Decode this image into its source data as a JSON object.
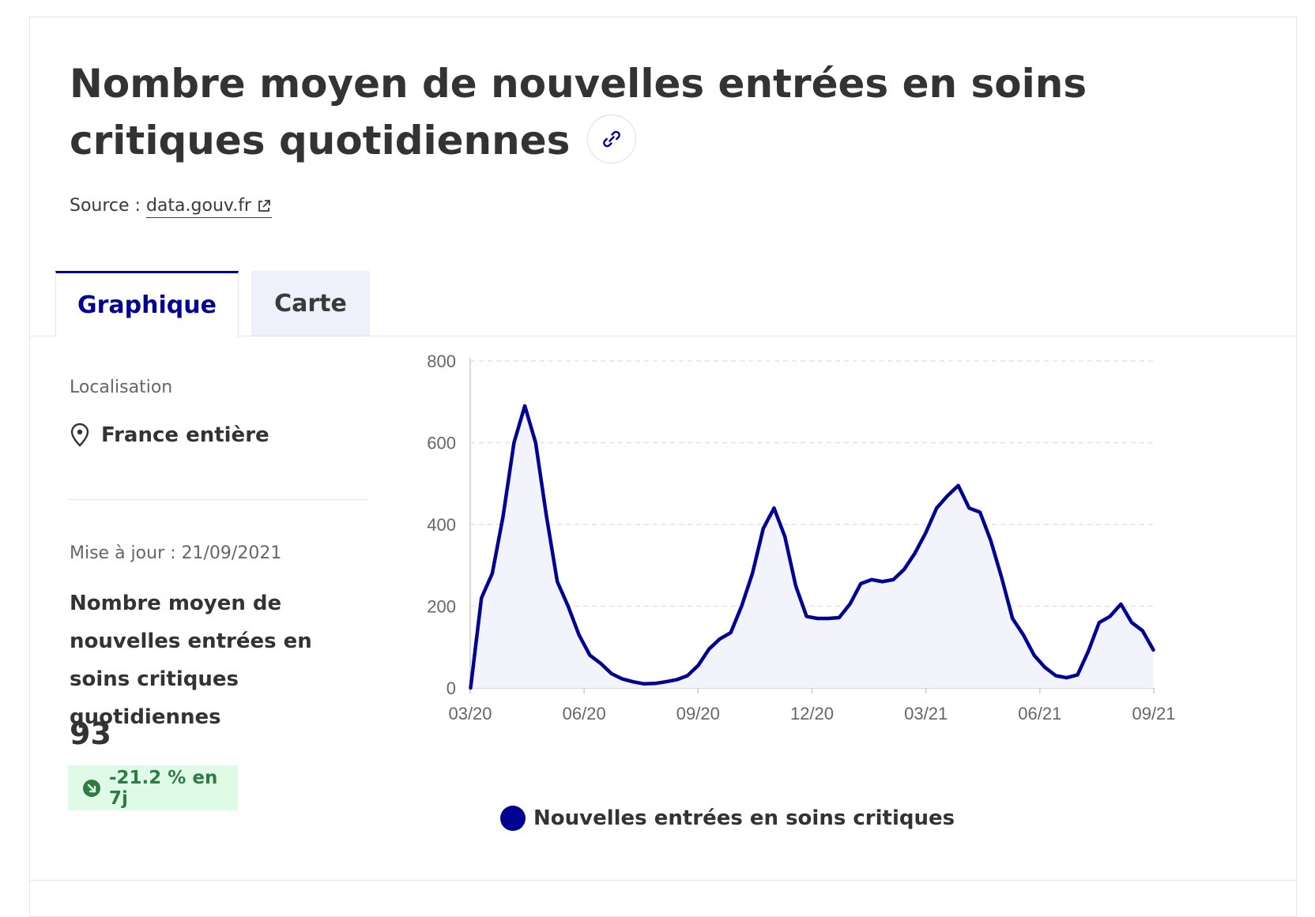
{
  "page": {
    "title": "Nombre moyen de nouvelles entrées en soins critiques quotidiennes",
    "source_label": "Source :",
    "source_link": "data.gouv.fr",
    "link_icon": "link-icon",
    "external_icon": "external-link-icon"
  },
  "tabs": [
    {
      "label": "Graphique",
      "active": true
    },
    {
      "label": "Carte",
      "active": false
    }
  ],
  "sidebar": {
    "location_label": "Localisation",
    "location_value": "France entière",
    "location_icon": "map-pin-icon",
    "update_label": "Mise à jour : 21/09/2021",
    "kpi_title": "Nombre moyen de nouvelles entrées en soins critiques quotidiennes",
    "kpi_value": "93",
    "trend_text": "-21.2 % en 7j",
    "trend_icon": "arrow-down-right-icon",
    "trend_color": "#2f7a45",
    "trend_bg": "#dffbe8"
  },
  "colors": {
    "accent": "#000091",
    "area_fill": "#f3f3fb",
    "grid": "#dddddd"
  },
  "chart_data": {
    "type": "area",
    "y_ticks": [
      0,
      200,
      400,
      600,
      800
    ],
    "x_ticks": [
      "03/20",
      "06/20",
      "09/20",
      "12/20",
      "03/21",
      "06/21",
      "09/21"
    ],
    "ylim": [
      0,
      800
    ],
    "grid": true,
    "legend_position": "bottom",
    "series": [
      {
        "name": "Nouvelles entrées en soins critiques",
        "color": "#000091",
        "points": [
          [
            "03/2020 début",
            0
          ],
          [
            "03/2020",
            220
          ],
          [
            "03/2020",
            280
          ],
          [
            "03/2020",
            420
          ],
          [
            "03/2020",
            600
          ],
          [
            "04/2020",
            690
          ],
          [
            "04/2020",
            600
          ],
          [
            "04/2020",
            420
          ],
          [
            "04/2020",
            260
          ],
          [
            "04/2020",
            200
          ],
          [
            "05/2020",
            130
          ],
          [
            "05/2020",
            80
          ],
          [
            "05/2020",
            60
          ],
          [
            "05/2020",
            35
          ],
          [
            "06/2020",
            22
          ],
          [
            "06/2020",
            15
          ],
          [
            "07/2020",
            10
          ],
          [
            "07/2020",
            11
          ],
          [
            "08/2020",
            15
          ],
          [
            "08/2020",
            20
          ],
          [
            "08/2020",
            30
          ],
          [
            "09/2020",
            55
          ],
          [
            "09/2020",
            95
          ],
          [
            "09/2020",
            120
          ],
          [
            "10/2020",
            135
          ],
          [
            "10/2020",
            200
          ],
          [
            "10/2020",
            280
          ],
          [
            "10/2020",
            390
          ],
          [
            "11/2020",
            440
          ],
          [
            "11/2020",
            370
          ],
          [
            "11/2020",
            250
          ],
          [
            "11/2020",
            175
          ],
          [
            "12/2020",
            170
          ],
          [
            "12/2020",
            170
          ],
          [
            "12/2020",
            172
          ],
          [
            "01/2021",
            205
          ],
          [
            "01/2021",
            255
          ],
          [
            "01/2021",
            265
          ],
          [
            "02/2021",
            260
          ],
          [
            "02/2021",
            265
          ],
          [
            "02/2021",
            290
          ],
          [
            "03/2021",
            330
          ],
          [
            "03/2021",
            380
          ],
          [
            "03/2021",
            440
          ],
          [
            "04/2021",
            470
          ],
          [
            "04/2021",
            495
          ],
          [
            "04/2021",
            440
          ],
          [
            "04/2021",
            430
          ],
          [
            "05/2021",
            360
          ],
          [
            "05/2021",
            270
          ],
          [
            "05/2021",
            170
          ],
          [
            "06/2021",
            130
          ],
          [
            "06/2021",
            80
          ],
          [
            "06/2021",
            50
          ],
          [
            "07/2021",
            30
          ],
          [
            "07/2021",
            25
          ],
          [
            "07/2021",
            32
          ],
          [
            "08/2021",
            90
          ],
          [
            "08/2021",
            160
          ],
          [
            "08/2021",
            175
          ],
          [
            "08/2021",
            205
          ],
          [
            "09/2021",
            160
          ],
          [
            "09/2021",
            140
          ],
          [
            "09/2021",
            93
          ]
        ]
      }
    ]
  }
}
